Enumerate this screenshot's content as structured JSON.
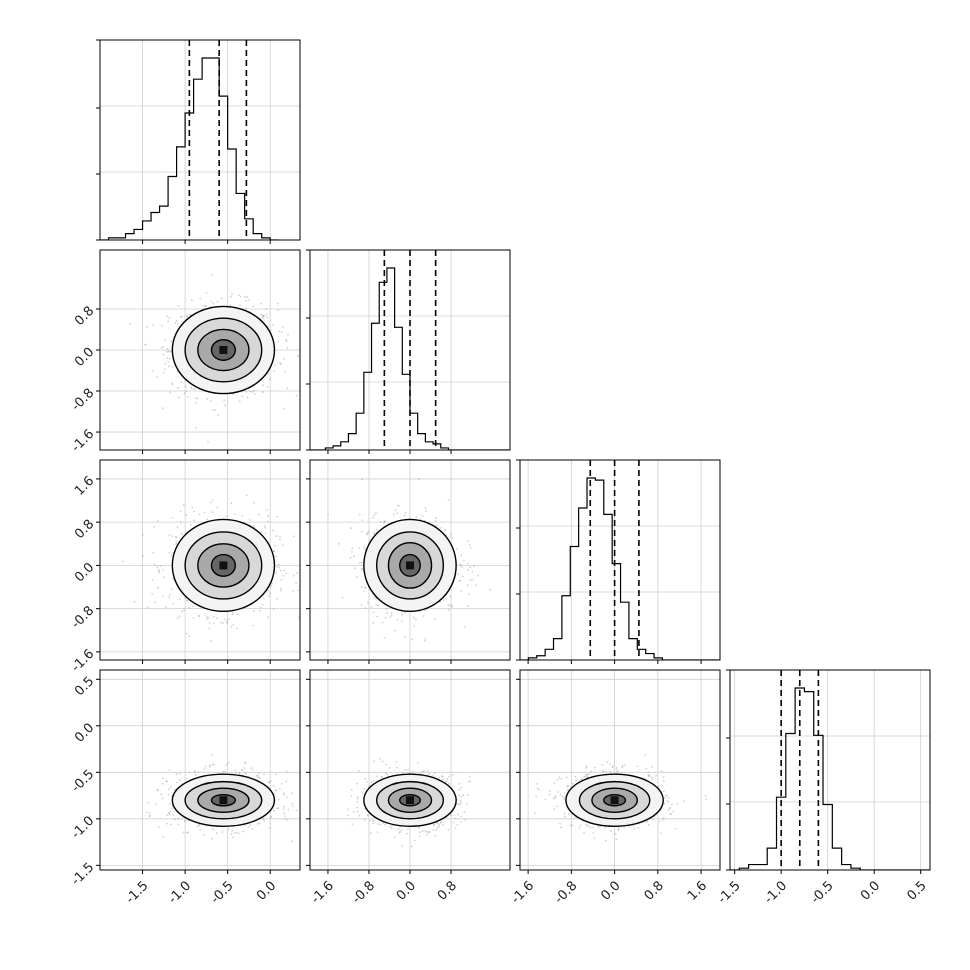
{
  "chart_data": {
    "type": "corner",
    "title": "",
    "parameters": [
      {
        "name": "",
        "range": [
          -2.0,
          0.35
        ],
        "quantiles": [
          -0.95,
          -0.6,
          -0.28
        ]
      },
      {
        "name": "",
        "range": [
          -1.95,
          1.95
        ],
        "quantiles": [
          -0.5,
          0.0,
          0.5
        ]
      },
      {
        "name": "",
        "range": [
          -1.75,
          1.95
        ],
        "quantiles": [
          -0.45,
          0.0,
          0.45
        ]
      },
      {
        "name": "",
        "range": [
          -1.55,
          0.6
        ],
        "quantiles": [
          -1.0,
          -0.8,
          -0.6
        ]
      }
    ],
    "xticks": [
      [
        "-1.5",
        "-1.0",
        "-0.5",
        "0.0"
      ],
      [
        "-1.6",
        "-0.8",
        "0.0",
        "0.8"
      ],
      [
        "-1.6",
        "-0.8",
        "0.0",
        "0.8",
        "1.6"
      ],
      [
        "-1.5",
        "-1.0",
        "-0.5",
        "0.0",
        "0.5"
      ]
    ],
    "yticks": [
      [],
      [
        "-1.6",
        "-0.8",
        "0.0",
        "0.8"
      ],
      [
        "-1.6",
        "-0.8",
        "0.0",
        "0.8",
        "1.6"
      ],
      [
        "-1.5",
        "-1.0",
        "-0.5",
        "0.0",
        "0.5"
      ]
    ],
    "histograms": [
      {
        "bin_start": -2.0,
        "bin_width": 0.1,
        "counts": [
          0,
          1,
          1,
          3,
          5,
          9,
          13,
          16,
          30,
          44,
          60,
          76,
          86,
          86,
          68,
          43,
          22,
          10,
          3,
          1,
          0
        ]
      },
      {
        "bin_start": -1.95,
        "bin_width": 0.15,
        "counts": [
          0,
          0,
          1,
          2,
          4,
          8,
          18,
          38,
          62,
          82,
          89,
          60,
          37,
          18,
          8,
          4,
          3,
          1,
          0,
          0,
          0,
          0,
          0,
          0,
          0,
          0
        ]
      },
      {
        "bin_start": -1.75,
        "bin_width": 0.155,
        "counts": [
          0,
          1,
          2,
          5,
          10,
          30,
          53,
          71,
          85,
          84,
          68,
          45,
          27,
          10,
          5,
          3,
          1,
          0,
          0,
          0,
          0,
          0,
          0,
          0
        ]
      },
      {
        "bin_start": -1.55,
        "bin_width": 0.1,
        "counts": [
          0,
          1,
          3,
          3,
          12,
          40,
          75,
          100,
          98,
          74,
          36,
          12,
          3,
          1,
          0,
          0,
          0,
          0,
          0,
          0,
          0,
          0
        ]
      }
    ],
    "contours": [
      {
        "row": 1,
        "col": 0,
        "center": [
          -0.55,
          0.0
        ],
        "radii": [
          [
            0.14,
            0.2
          ],
          [
            0.3,
            0.4
          ],
          [
            0.45,
            0.62
          ],
          [
            0.6,
            0.85
          ]
        ]
      },
      {
        "row": 2,
        "col": 0,
        "center": [
          -0.55,
          0.0
        ],
        "radii": [
          [
            0.14,
            0.2
          ],
          [
            0.3,
            0.4
          ],
          [
            0.45,
            0.62
          ],
          [
            0.6,
            0.85
          ]
        ]
      },
      {
        "row": 2,
        "col": 1,
        "center": [
          0.0,
          0.0
        ],
        "radii": [
          [
            0.2,
            0.2
          ],
          [
            0.42,
            0.42
          ],
          [
            0.65,
            0.62
          ],
          [
            0.9,
            0.85
          ]
        ]
      },
      {
        "row": 3,
        "col": 0,
        "center": [
          -0.55,
          -0.8
        ],
        "radii": [
          [
            0.14,
            0.06
          ],
          [
            0.3,
            0.13
          ],
          [
            0.45,
            0.2
          ],
          [
            0.6,
            0.28
          ]
        ]
      },
      {
        "row": 3,
        "col": 1,
        "center": [
          0.0,
          -0.8
        ],
        "radii": [
          [
            0.2,
            0.06
          ],
          [
            0.42,
            0.13
          ],
          [
            0.65,
            0.2
          ],
          [
            0.9,
            0.28
          ]
        ]
      },
      {
        "row": 3,
        "col": 2,
        "center": [
          0.0,
          -0.8
        ],
        "radii": [
          [
            0.2,
            0.06
          ],
          [
            0.42,
            0.13
          ],
          [
            0.65,
            0.2
          ],
          [
            0.9,
            0.28
          ]
        ]
      }
    ]
  }
}
